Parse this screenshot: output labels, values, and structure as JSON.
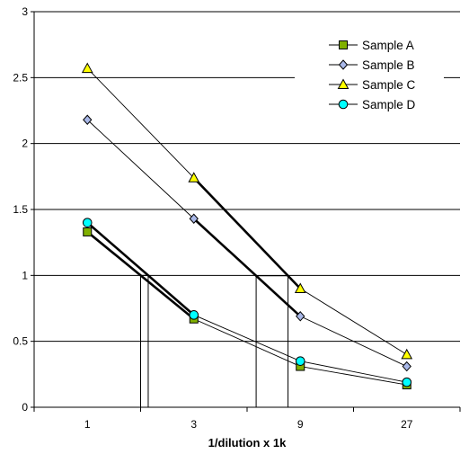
{
  "chart_data": {
    "type": "line",
    "title": "",
    "xlabel": "1/dilution x 1k",
    "ylabel": "",
    "categories": [
      "1",
      "3",
      "9",
      "27"
    ],
    "ylim": [
      0,
      3
    ],
    "yticks": [
      "0",
      "0.5",
      "1",
      "1.5",
      "2",
      "2.5",
      "3"
    ],
    "grid": true,
    "legend_position": "top-right",
    "series": [
      {
        "name": "Sample A",
        "values": [
          1.33,
          0.67,
          0.31,
          0.17
        ],
        "marker": "square",
        "color": "#80b000"
      },
      {
        "name": "Sample B",
        "values": [
          2.18,
          1.43,
          0.69,
          0.31
        ],
        "marker": "diamond",
        "color": "#a9b8e8"
      },
      {
        "name": "Sample C",
        "values": [
          2.57,
          1.74,
          0.9,
          0.4
        ],
        "marker": "triangle",
        "color": "#ffff00"
      },
      {
        "name": "Sample D",
        "values": [
          1.4,
          0.7,
          0.35,
          0.19
        ],
        "marker": "circle",
        "color": "#00ffff"
      }
    ],
    "highlight_segments": [
      {
        "series": "Sample A",
        "from": "1",
        "to": "3"
      },
      {
        "series": "Sample D",
        "from": "1",
        "to": "3"
      },
      {
        "series": "Sample B",
        "from": "3",
        "to": "9"
      },
      {
        "series": "Sample C",
        "from": "3",
        "to": "9"
      }
    ],
    "reference_lines": [
      {
        "y": 1.0,
        "x_from": "1",
        "x_to": "3"
      },
      {
        "y": 0.997,
        "x_from": "3",
        "x_to": "9"
      }
    ]
  }
}
